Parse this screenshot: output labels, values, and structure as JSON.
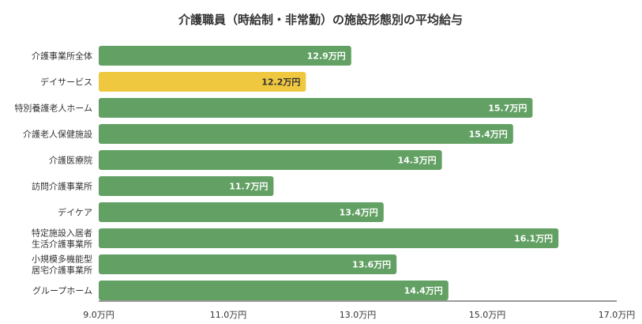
{
  "chart_data": {
    "type": "bar",
    "orientation": "horizontal",
    "title": "介護職員（時給制・非常勤）の施設形態別の平均給与",
    "categories": [
      "介護事業所全体",
      "デイサービス",
      "特別養護老人ホーム",
      "介護老人保健施設",
      "介護医療院",
      "訪問介護事業所",
      "デイケア",
      "特定施設入居者生活介護事業所",
      "小規模多機能型居宅介護事業所",
      "グループホーム"
    ],
    "category_lines": [
      [
        "介護事業所全体"
      ],
      [
        "デイサービス"
      ],
      [
        "特別養護老人ホーム"
      ],
      [
        "介護老人保健施設"
      ],
      [
        "介護医療院"
      ],
      [
        "訪問介護事業所"
      ],
      [
        "デイケア"
      ],
      [
        "特定施設入居者",
        "生活介護事業所"
      ],
      [
        "小規模多機能型",
        "居宅介護事業所"
      ],
      [
        "グループホーム"
      ]
    ],
    "values": [
      12.9,
      12.2,
      15.7,
      15.4,
      14.3,
      11.7,
      13.4,
      16.1,
      13.6,
      14.4
    ],
    "value_labels": [
      "12.9万円",
      "12.2万円",
      "15.7万円",
      "15.4万円",
      "14.3万円",
      "11.7万円",
      "13.4万円",
      "16.1万円",
      "13.6万円",
      "14.4万円"
    ],
    "highlight_index": 1,
    "xlim": [
      9.0,
      17.0
    ],
    "x_ticks": [
      9.0,
      11.0,
      13.0,
      15.0,
      17.0
    ],
    "x_tick_labels": [
      "9.0万円",
      "11.0万円",
      "13.0万円",
      "15.0万円",
      "17.0万円"
    ],
    "grid": false,
    "colors": {
      "bar": "#62a063",
      "highlight": "#f0c840",
      "label_on_bar": "#ffffff",
      "label_on_highlight": "#333333",
      "text": "#333333",
      "axis": "#333333"
    }
  }
}
